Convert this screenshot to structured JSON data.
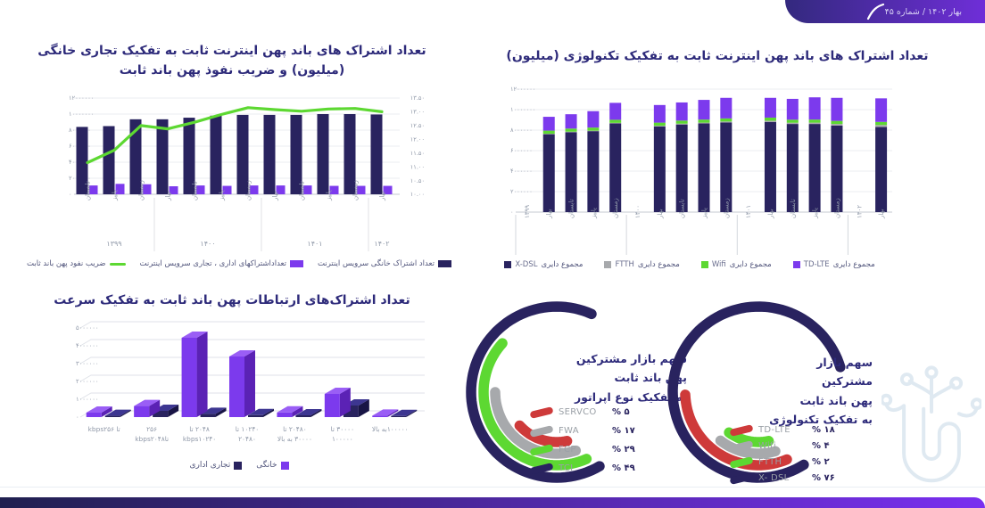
{
  "badge": {
    "issue": "بهار ۱۴۰۲ / شماره ۴۵"
  },
  "colors": {
    "navy": "#29235f",
    "purple": "#7c3aed",
    "green": "#5dd832",
    "gray": "#a7a9ac",
    "red": "#ce3a3a",
    "title": "#2d2a7a",
    "axis": "#8f98a8",
    "grid": "#e4e6ec",
    "legend_text": "#4f537a",
    "purple_top": "#9a5ef5",
    "purple_side": "#5b22b5",
    "navy_top": "#3d3691",
    "navy_side": "#181445",
    "badge_from": "#33297e",
    "badge_to": "#6f2ed8",
    "footer_from": "#20204f",
    "footer_to": "#7a2ff0",
    "watermark": "#dfe9f1"
  },
  "chart_data": [
    {
      "id": "combo",
      "type": "bar",
      "title": "تعداد اشتراک های باند پهن اینترنت ثابت به تفکیک تجاری خانگی (میلیون) و ضریب نفوذ پهن باند ثابت",
      "categories": [
        "تابستان",
        "پاییز",
        "زمستان",
        "بهار",
        "تابستان",
        "پاییز",
        "زمستان",
        "بهار",
        "تابستان",
        "پاییز",
        "زمستان",
        "بهار"
      ],
      "year_groups": [
        {
          "label": "۱۳۹۹",
          "count": 3
        },
        {
          "label": "۱۴۰۰",
          "count": 4
        },
        {
          "label": "۱۴۰۱",
          "count": 4
        },
        {
          "label": "۱۴۰۲",
          "count": 1
        }
      ],
      "series": [
        {
          "name": "تعداد اشتراک خانگی سرویس اینترنت",
          "type": "bar",
          "color_key": "navy",
          "values": [
            8400000,
            8500000,
            9350000,
            9350000,
            9550000,
            9800000,
            9900000,
            9900000,
            9900000,
            10000000,
            10000000,
            9950000
          ]
        },
        {
          "name": "تعداداشتراکهای اداری ، تجاری سرویس اینترنت",
          "type": "bar",
          "color_key": "purple",
          "values": [
            1100000,
            1300000,
            1250000,
            1000000,
            1100000,
            1050000,
            1100000,
            1100000,
            1100000,
            1050000,
            1050000,
            1050000
          ]
        },
        {
          "name": "ضریب نفود پهن باند ثابت",
          "type": "line",
          "color_key": "green",
          "axis": "right",
          "values": [
            11.15,
            11.6,
            12.5,
            12.38,
            12.62,
            12.9,
            13.15,
            13.08,
            13.02,
            13.1,
            13.12,
            13.0
          ]
        }
      ],
      "y_left": {
        "max": 12000000,
        "ticks": [
          "۱۲۰۰۰۰۰۰",
          "۱۰۰۰۰۰۰۰",
          "۸۰۰۰۰۰۰",
          "۶۰۰۰۰۰۰",
          "۴۰۰۰۰۰۰",
          "۲۰۰۰۰۰۰",
          "۰"
        ]
      },
      "y_right": {
        "min": 10,
        "max": 13.5,
        "ticks": [
          "۱۳.۵۰",
          "۱۳.۰۰",
          "۱۲.۵۰",
          "۱۲.۰۰",
          "۱۱.۵۰",
          "۱۱.۰۰",
          "۱۰.۵۰",
          "۱۰.۰۰"
        ]
      }
    },
    {
      "id": "stacked_technology",
      "type": "bar",
      "title": "تعداد اشتراک های باند پهن اینترنت ثابت به تفکیک تکنولوژی (میلیون)",
      "slots": [
        {
          "label": "۱۳۹۹",
          "is_year": true
        },
        {
          "label": "بهار"
        },
        {
          "label": "تابستان"
        },
        {
          "label": "پاییز"
        },
        {
          "label": "زمستان"
        },
        {
          "label": "۱۴۰۰",
          "is_year": true
        },
        {
          "label": "بهار"
        },
        {
          "label": "تابستان"
        },
        {
          "label": "پاییز"
        },
        {
          "label": "زمستان"
        },
        {
          "label": "۱۴۰۱",
          "is_year": true
        },
        {
          "label": "بهار"
        },
        {
          "label": "تابستان"
        },
        {
          "label": "پاییز"
        },
        {
          "label": "زمستان"
        },
        {
          "label": "۱۴۰۲",
          "is_year": true
        },
        {
          "label": "بهار"
        }
      ],
      "series": [
        {
          "name_en": "X-DSL",
          "name_fa": "مجموع دایری",
          "color_key": "navy",
          "values": [
            7600000,
            7800000,
            7900000,
            8650000,
            8350000,
            8550000,
            8650000,
            8750000,
            8800000,
            8600000,
            8600000,
            8450000,
            8300000
          ]
        },
        {
          "name_en": "FTTH",
          "name_fa": "مجموع دایری",
          "color_key": "gray",
          "values": [
            50000,
            50000,
            50000,
            60000,
            80000,
            80000,
            80000,
            90000,
            120000,
            120000,
            130000,
            150000,
            200000
          ]
        },
        {
          "name_en": "Wifi",
          "name_fa": "مجموع دایری",
          "color_key": "green",
          "values": [
            300000,
            300000,
            300000,
            300000,
            300000,
            300000,
            300000,
            300000,
            300000,
            300000,
            300000,
            300000,
            300000
          ]
        },
        {
          "name_en": "TD-LTE",
          "name_fa": "مجموع دایری",
          "color_key": "purple",
          "values": [
            1350000,
            1400000,
            1600000,
            1650000,
            1720000,
            1770000,
            1920000,
            2010000,
            1930000,
            2030000,
            2170000,
            2250000,
            2300000
          ]
        }
      ],
      "y_left": {
        "max": 12000000,
        "ticks": [
          "۱۲۰۰۰۰۰۰",
          "۱۰۰۰۰۰۰۰",
          "۸۰۰۰۰۰۰",
          "۶۰۰۰۰۰۰",
          "۴۰۰۰۰۰۰",
          "۲۰۰۰۰۰۰",
          "۰"
        ]
      }
    },
    {
      "id": "speed_tiers",
      "type": "bar",
      "title": "تعداد اشتراک‌های ارتباطات پهن باند ثابت به تفکیک سرعت",
      "categories": [
        {
          "lines": [
            "تا kbps۲۵۶"
          ]
        },
        {
          "lines": [
            "۲۵۶",
            "تاkbps۲۰۴۸"
          ]
        },
        {
          "lines": [
            "۲۰۴۸ تا",
            "kbps۱۰۲۴۰"
          ]
        },
        {
          "lines": [
            "۱۰۲۴۰ تا",
            "۲۰۴۸۰"
          ]
        },
        {
          "lines": [
            "۲۰۴۸۰ تا",
            "۳۰۰۰۰ به بالا"
          ]
        },
        {
          "lines": [
            "۳۰۰۰۰ تا",
            "۱۰۰۰۰۰"
          ]
        },
        {
          "lines": [
            "۱۰۰۰۰۰به بالا"
          ]
        }
      ],
      "series": [
        {
          "name": "خانگی",
          "color_key": "purple",
          "values": [
            250000,
            620000,
            4450000,
            3400000,
            260000,
            1300000,
            80000
          ]
        },
        {
          "name": "تجاری اداری",
          "color_key": "navy",
          "values": [
            70000,
            350000,
            180000,
            110000,
            100000,
            650000,
            60000
          ]
        }
      ],
      "y_left": {
        "max": 5000000,
        "ticks": [
          "۵۰۰۰۰۰۰",
          "۴۰۰۰۰۰۰",
          "۳۰۰۰۰۰۰",
          "۲۰۰۰۰۰۰",
          "۱۰۰۰۰۰۰",
          "۰"
        ]
      }
    },
    {
      "id": "operator_share",
      "type": "pie",
      "title_lines": [
        "سهم بازار مشترکین",
        "پهن باند ثابت",
        "به تفکیک نوع اپراتور"
      ],
      "slices": [
        {
          "label": "SERVCO",
          "pct": 5,
          "pct_fa": "۵ %",
          "color_key": "red"
        },
        {
          "label": "FWA",
          "pct": 17,
          "pct_fa": "۱۷ %",
          "color_key": "gray"
        },
        {
          "label": "FCP",
          "pct": 29,
          "pct_fa": "۲۹ %",
          "color_key": "green"
        },
        {
          "label": "TCI",
          "pct": 49,
          "pct_fa": "۴۹ %",
          "color_key": "navy"
        }
      ]
    },
    {
      "id": "technology_share",
      "type": "pie",
      "title_lines": [
        "سهم بازار مشترکین",
        "پهن باند ثابت",
        "به تفکیک تکنولوژی"
      ],
      "slices": [
        {
          "label": "TD-LTE",
          "pct": 18,
          "pct_fa": "۱۸ %",
          "color_key": "red"
        },
        {
          "label": "Wifi",
          "pct": 4,
          "pct_fa": "۴ %",
          "color_key": "gray"
        },
        {
          "label": "FTTH",
          "pct": 2,
          "pct_fa": "۲ %",
          "color_key": "green"
        },
        {
          "label": "X- DSL",
          "pct": 76,
          "pct_fa": "۷۶ %",
          "color_key": "navy"
        }
      ]
    }
  ]
}
